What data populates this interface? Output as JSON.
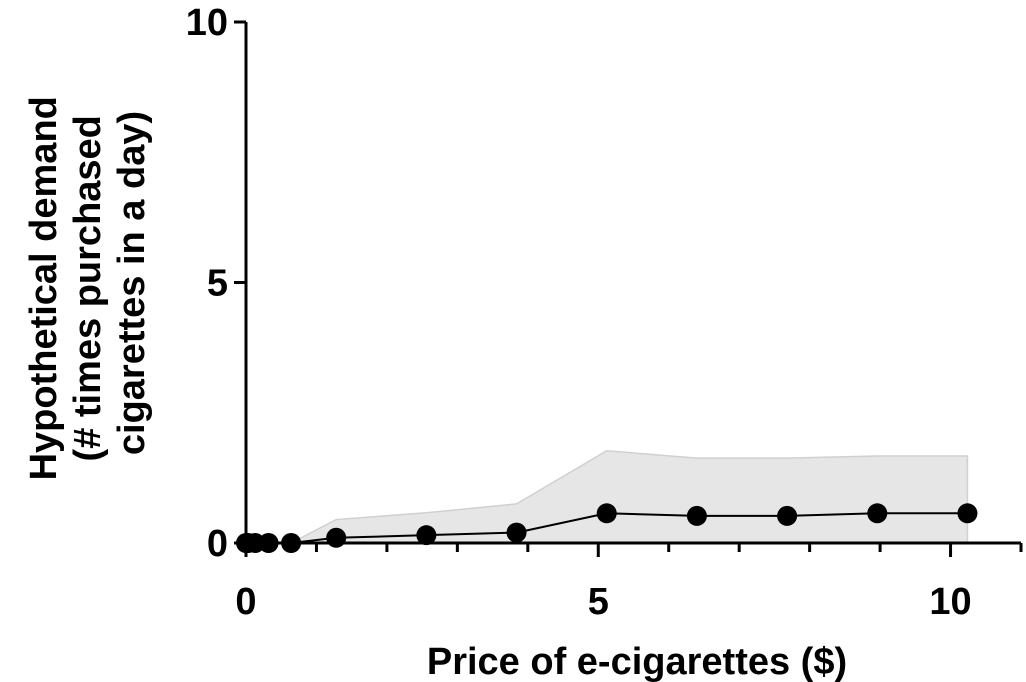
{
  "chart_data": {
    "type": "line",
    "xlabel": "Price of e-cigarettes ($)",
    "ylabel_lines": [
      "Hypothetical demand",
      "(# times purchased",
      "cigarettes in a day)"
    ],
    "xlim": [
      0,
      11
    ],
    "ylim": [
      0,
      10
    ],
    "x_ticks": [
      0,
      5,
      10
    ],
    "y_ticks": [
      0,
      5,
      10
    ],
    "x_minor_step": 1,
    "grid": false,
    "series": [
      {
        "x": [
          0,
          0.03,
          0.13,
          0.32,
          0.64,
          1.28,
          2.56,
          3.84,
          5.12,
          6.4,
          7.68,
          8.96,
          10.24
        ],
        "values": [
          0,
          0,
          0,
          0,
          0,
          0.1,
          0.15,
          0.2,
          0.57,
          0.52,
          0.52,
          0.57,
          0.57
        ],
        "band_upper": [
          0,
          0,
          0,
          0,
          0,
          0.45,
          0.58,
          0.75,
          1.77,
          1.63,
          1.63,
          1.67,
          1.67
        ],
        "band_lower": [
          0,
          0,
          0,
          0,
          0,
          0,
          0,
          0,
          0,
          0,
          0,
          0,
          0
        ]
      }
    ],
    "colors": {
      "marker": "#000000",
      "line": "#000000",
      "band": "#e6e6e6",
      "band_edge": "#d0d0d0"
    }
  }
}
